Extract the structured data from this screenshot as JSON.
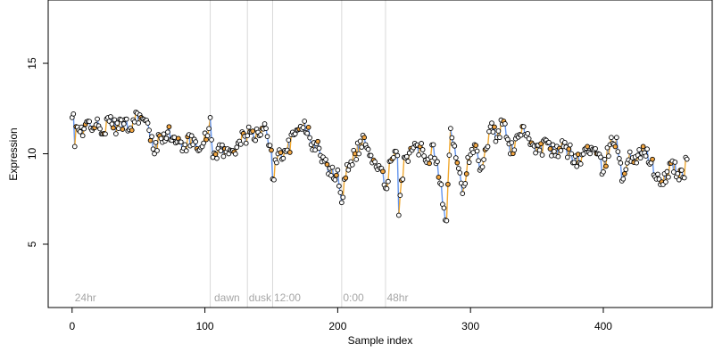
{
  "chart_data": {
    "type": "scatter",
    "title": "",
    "xlabel": "Sample index",
    "ylabel": "Expression",
    "xlim": [
      -18,
      482
    ],
    "ylim": [
      1.5,
      18.5
    ],
    "xticks": [
      0,
      100,
      200,
      300,
      400
    ],
    "yticks": [
      5,
      10,
      15
    ],
    "xtick_labels": [
      "0",
      "100",
      "200",
      "300",
      "400"
    ],
    "ytick_labels": [
      "5",
      "10",
      "15"
    ],
    "grid": false,
    "legend": "none",
    "colors": {
      "points_fill": "#ffffff",
      "points_stroke": "#000000",
      "highlight_fill": "#f4a742",
      "line_gray": "#a6a6a6",
      "line_up": "#f0a830",
      "line_down": "#6495ed",
      "vline": "#d9d9d9",
      "annotation": "#a6a6a6"
    },
    "vlines": [
      104,
      132,
      151,
      203,
      236
    ],
    "annotations": [
      {
        "x": 2,
        "label": "24hr"
      },
      {
        "x": 107,
        "label": "dawn"
      },
      {
        "x": 133,
        "label": "dusk"
      },
      {
        "x": 152,
        "label": "12:00"
      },
      {
        "x": 204,
        "label": "0:00"
      },
      {
        "x": 237,
        "label": "48hr"
      }
    ],
    "anchors": [
      [
        0,
        12.0
      ],
      [
        1,
        12.2
      ],
      [
        2,
        10.4
      ],
      [
        3,
        11.5
      ],
      [
        5,
        11.3
      ],
      [
        8,
        11.0
      ],
      [
        12,
        11.8
      ],
      [
        18,
        11.6
      ],
      [
        22,
        11.1
      ],
      [
        28,
        11.8
      ],
      [
        35,
        11.4
      ],
      [
        40,
        11.9
      ],
      [
        45,
        11.3
      ],
      [
        48,
        12.3
      ],
      [
        52,
        12.0
      ],
      [
        58,
        11.3
      ],
      [
        62,
        10.0
      ],
      [
        66,
        11.0
      ],
      [
        72,
        11.2
      ],
      [
        78,
        10.6
      ],
      [
        85,
        10.5
      ],
      [
        92,
        10.8
      ],
      [
        98,
        10.4
      ],
      [
        102,
        11.0
      ],
      [
        104,
        12.0
      ],
      [
        106,
        9.8
      ],
      [
        110,
        10.3
      ],
      [
        118,
        10.0
      ],
      [
        125,
        10.6
      ],
      [
        132,
        11.0
      ],
      [
        135,
        11.2
      ],
      [
        141,
        11.0
      ],
      [
        146,
        11.4
      ],
      [
        150,
        10.2
      ],
      [
        151,
        8.6
      ],
      [
        155,
        10.0
      ],
      [
        162,
        10.2
      ],
      [
        168,
        11.1
      ],
      [
        175,
        11.8
      ],
      [
        180,
        10.5
      ],
      [
        186,
        10.3
      ],
      [
        190,
        9.6
      ],
      [
        195,
        8.8
      ],
      [
        200,
        9.1
      ],
      [
        203,
        7.3
      ],
      [
        207,
        9.4
      ],
      [
        213,
        10.0
      ],
      [
        220,
        10.9
      ],
      [
        226,
        9.5
      ],
      [
        232,
        9.2
      ],
      [
        236,
        8.1
      ],
      [
        240,
        9.6
      ],
      [
        245,
        9.9
      ],
      [
        246,
        6.6
      ],
      [
        250,
        9.8
      ],
      [
        256,
        10.2
      ],
      [
        262,
        10.4
      ],
      [
        268,
        9.7
      ],
      [
        272,
        10.5
      ],
      [
        278,
        8.3
      ],
      [
        280,
        7.0
      ],
      [
        282,
        6.3
      ],
      [
        285,
        11.4
      ],
      [
        290,
        9.5
      ],
      [
        294,
        7.8
      ],
      [
        298,
        9.8
      ],
      [
        303,
        10.5
      ],
      [
        308,
        9.2
      ],
      [
        312,
        10.3
      ],
      [
        315,
        11.5
      ],
      [
        320,
        10.9
      ],
      [
        325,
        11.8
      ],
      [
        330,
        10.0
      ],
      [
        335,
        11.0
      ],
      [
        340,
        11.5
      ],
      [
        346,
        10.6
      ],
      [
        352,
        10.2
      ],
      [
        358,
        10.6
      ],
      [
        364,
        9.9
      ],
      [
        370,
        10.4
      ],
      [
        376,
        10.0
      ],
      [
        382,
        9.5
      ],
      [
        388,
        10.4
      ],
      [
        395,
        10.0
      ],
      [
        400,
        9.0
      ],
      [
        405,
        10.5
      ],
      [
        410,
        10.9
      ],
      [
        414,
        8.5
      ],
      [
        420,
        10.1
      ],
      [
        425,
        9.5
      ],
      [
        430,
        10.4
      ],
      [
        436,
        9.5
      ],
      [
        440,
        8.6
      ],
      [
        445,
        8.3
      ],
      [
        452,
        9.6
      ],
      [
        456,
        8.9
      ],
      [
        460,
        8.7
      ],
      [
        463,
        9.7
      ]
    ],
    "n_points": 464
  }
}
